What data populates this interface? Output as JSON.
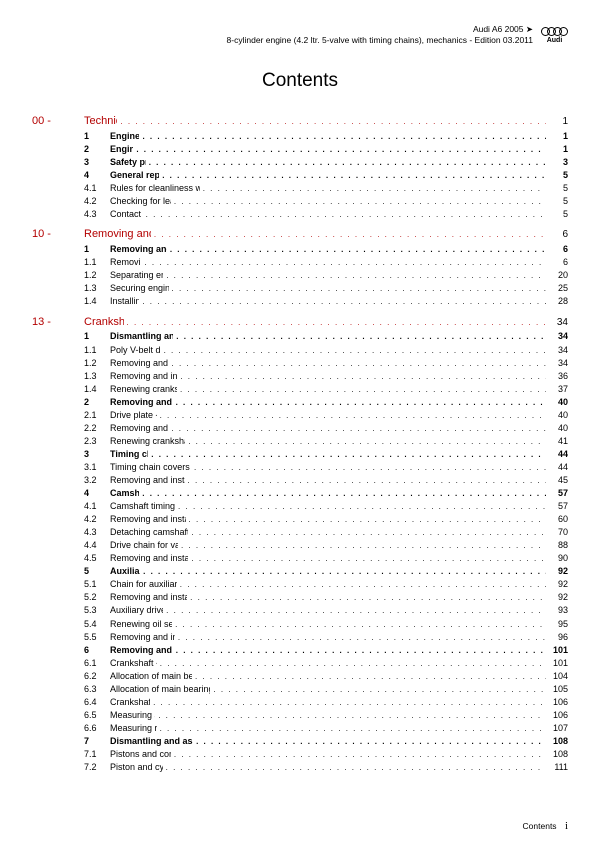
{
  "header": {
    "line1": "Audi A6 2005 ➤",
    "line2": "8-cylinder engine (4.2 ltr. 5-valve with timing chains), mechanics - Edition 03.2011",
    "logo_text": "Audi"
  },
  "title": "Contents",
  "footer": {
    "label": "Contents",
    "page": "i"
  },
  "sections": [
    {
      "head": {
        "num": "00 -",
        "label": "Technical data",
        "page": "1"
      },
      "items": [
        {
          "type": "sub",
          "num": "1",
          "label": "Engine number",
          "page": "1"
        },
        {
          "type": "sub",
          "num": "2",
          "label": "Engine data",
          "page": "1"
        },
        {
          "type": "sub",
          "num": "3",
          "label": "Safety precautions",
          "page": "3"
        },
        {
          "type": "sub",
          "num": "4",
          "label": "General repair instructions",
          "page": "5"
        },
        {
          "type": "ent",
          "num": "4.1",
          "label": "Rules for cleanliness when working on the injection system",
          "page": "5"
        },
        {
          "type": "ent",
          "num": "4.2",
          "label": "Checking for leaks in the fuel system",
          "page": "5"
        },
        {
          "type": "ent",
          "num": "4.3",
          "label": "Contact corrosion!",
          "page": "5"
        }
      ]
    },
    {
      "head": {
        "num": "10 -",
        "label": "Removing and installing engine",
        "page": "6"
      },
      "items": [
        {
          "type": "sub",
          "num": "1",
          "label": "Removing and installing engine",
          "page": "6"
        },
        {
          "type": "ent",
          "num": "1.1",
          "label": "Removing engine",
          "page": "6"
        },
        {
          "type": "ent",
          "num": "1.2",
          "label": "Separating engine and gearbox",
          "page": "20"
        },
        {
          "type": "ent",
          "num": "1.3",
          "label": "Securing engine to assembly stand",
          "page": "25"
        },
        {
          "type": "ent",
          "num": "1.4",
          "label": "Installing engine",
          "page": "28"
        }
      ]
    },
    {
      "head": {
        "num": "13 -",
        "label": "Crankshaft group",
        "page": "34"
      },
      "items": [
        {
          "type": "sub",
          "num": "1",
          "label": "Dismantling and assembling engine",
          "page": "34"
        },
        {
          "type": "ent",
          "num": "1.1",
          "label": "Poly V-belt drive for alternator",
          "page": "34"
        },
        {
          "type": "ent",
          "num": "1.2",
          "label": "Removing and installing poly V-belt",
          "page": "34"
        },
        {
          "type": "ent",
          "num": "1.3",
          "label": "Removing and installing vibration damper",
          "page": "36"
        },
        {
          "type": "ent",
          "num": "1.4",
          "label": "Renewing crankshaft oil seal (pulley end)",
          "page": "37"
        },
        {
          "type": "sub",
          "num": "2",
          "label": "Removing and installing drive plate",
          "page": "40"
        },
        {
          "type": "ent",
          "num": "2.1",
          "label": "Drive plate - exploded view",
          "page": "40"
        },
        {
          "type": "ent",
          "num": "2.2",
          "label": "Removing and installing drive plate",
          "page": "40"
        },
        {
          "type": "ent",
          "num": "2.3",
          "label": "Renewing crankshaft oil seal (timing chain end)",
          "page": "41"
        },
        {
          "type": "sub",
          "num": "3",
          "label": "Timing chain covers",
          "page": "44"
        },
        {
          "type": "ent",
          "num": "3.1",
          "label": "Timing chain covers - exploded view of components",
          "page": "44"
        },
        {
          "type": "ent",
          "num": "3.2",
          "label": "Removing and installing all timing chain covers",
          "page": "45"
        },
        {
          "type": "sub",
          "num": "4",
          "label": "Camshaft drive",
          "page": "57"
        },
        {
          "type": "ent",
          "num": "4.1",
          "label": "Camshaft timing chains - exploded view",
          "page": "57"
        },
        {
          "type": "ent",
          "num": "4.2",
          "label": "Removing and installing camshaft timing chains",
          "page": "60"
        },
        {
          "type": "ent",
          "num": "4.3",
          "label": "Detaching camshaft timing chains from camshafts",
          "page": "70"
        },
        {
          "type": "ent",
          "num": "4.4",
          "label": "Drive chain for valve gear - exploded view",
          "page": "88"
        },
        {
          "type": "ent",
          "num": "4.5",
          "label": "Removing and installing drive chain for valve gear",
          "page": "90"
        },
        {
          "type": "sub",
          "num": "5",
          "label": "Auxiliary drives",
          "page": "92"
        },
        {
          "type": "ent",
          "num": "5.1",
          "label": "Chain for auxiliary drives - exploded view",
          "page": "92"
        },
        {
          "type": "ent",
          "num": "5.2",
          "label": "Removing and installing chain for auxiliary drives",
          "page": "92"
        },
        {
          "type": "ent",
          "num": "5.3",
          "label": "Auxiliary drives - exploded view",
          "page": "93"
        },
        {
          "type": "ent",
          "num": "5.4",
          "label": "Renewing oil seals for auxiliary drives",
          "page": "95"
        },
        {
          "type": "ent",
          "num": "5.5",
          "label": "Removing and installing spur gear drive",
          "page": "96"
        },
        {
          "type": "sub",
          "num": "6",
          "label": "Removing and installing crankshaft",
          "page": "101"
        },
        {
          "type": "ent",
          "num": "6.1",
          "label": "Crankshaft - exploded view",
          "page": "101"
        },
        {
          "type": "ent",
          "num": "6.2",
          "label": "Allocation of main bearing shells for new crankshafts",
          "page": "104"
        },
        {
          "type": "ent",
          "num": "6.3",
          "label": "Allocation of main bearing shells on used and machined crankshafts",
          "page": "105"
        },
        {
          "type": "ent",
          "num": "6.4",
          "label": "Crankshaft dimensions",
          "page": "106"
        },
        {
          "type": "ent",
          "num": "6.5",
          "label": "Measuring axial clearance",
          "page": "106"
        },
        {
          "type": "ent",
          "num": "6.6",
          "label": "Measuring radial clearance",
          "page": "107"
        },
        {
          "type": "sub",
          "num": "7",
          "label": "Dismantling and assembling pistons and conrods",
          "page": "108"
        },
        {
          "type": "ent",
          "num": "7.1",
          "label": "Pistons and conrods - exploded view",
          "page": "108"
        },
        {
          "type": "ent",
          "num": "7.2",
          "label": "Piston and cylinder dimensions",
          "page": "111"
        }
      ]
    }
  ]
}
